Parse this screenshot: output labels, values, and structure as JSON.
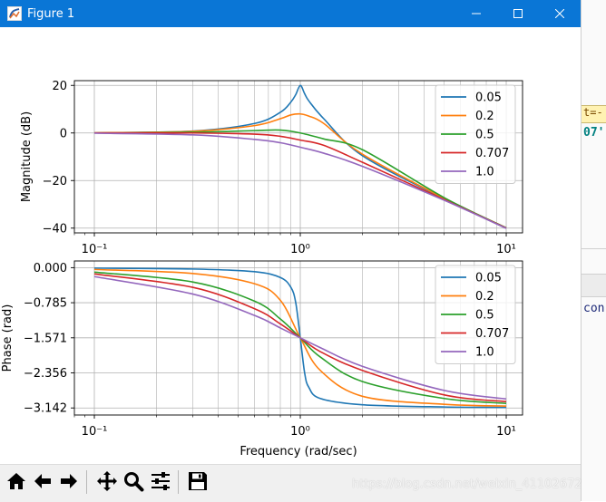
{
  "window": {
    "title": "Figure 1",
    "titlebar_color": "#0a76d6"
  },
  "figure": {
    "chart_data": [
      {
        "type": "line",
        "xscale": "log",
        "xlim": [
          0.08,
          12
        ],
        "ylim": [
          -42,
          22
        ],
        "xlabel": "",
        "ylabel": "Magnitude (dB)",
        "yticks": [
          20,
          0,
          -20,
          -40
        ],
        "ytick_labels": [
          "20",
          "0",
          "−20",
          "−40"
        ],
        "xticks": [
          0.1,
          1,
          10
        ],
        "xtick_labels": [
          "10⁻¹",
          "10⁰",
          "10¹"
        ],
        "grid": true,
        "legend_position": "upper right",
        "legend_entries": [
          "0.05",
          "0.2",
          "0.5",
          "0.707",
          "1.0"
        ],
        "series": [
          {
            "name": "0.05",
            "color": "#1f77b4",
            "x": [
              0.1,
              0.3,
              0.6,
              0.8,
              0.9,
              0.95,
              1.0,
              1.05,
              1.1,
              1.3,
              2,
              5,
              10
            ],
            "y": [
              0.1,
              0.8,
              4.0,
              8.7,
              13.0,
              16.1,
              20.0,
              16.5,
              13.5,
              6.0,
              -9.5,
              -27.6,
              -39.9
            ]
          },
          {
            "name": "0.2",
            "color": "#ff7f0e",
            "x": [
              0.1,
              0.3,
              0.6,
              0.8,
              0.9,
              1.0,
              1.1,
              1.3,
              2,
              5,
              10
            ],
            "y": [
              0.1,
              0.7,
              3.1,
              6.0,
              7.6,
              8.0,
              7.1,
              4.0,
              -8.9,
              -27.5,
              -39.9
            ]
          },
          {
            "name": "0.5",
            "color": "#2ca02c",
            "x": [
              0.1,
              0.3,
              0.6,
              0.8,
              1.0,
              1.3,
              2,
              5,
              10
            ],
            "y": [
              0.0,
              0.3,
              1.0,
              1.2,
              0.0,
              -2.5,
              -7.0,
              -27.2,
              -39.9
            ]
          },
          {
            "name": "0.707",
            "color": "#d62728",
            "x": [
              0.1,
              0.3,
              0.6,
              0.8,
              1.0,
              1.3,
              2,
              5,
              10
            ],
            "y": [
              0.0,
              0.0,
              -0.5,
              -1.4,
              -3.0,
              -5.2,
              -12.3,
              -28.0,
              -40.0
            ]
          },
          {
            "name": "1.0",
            "color": "#9467bd",
            "x": [
              0.1,
              0.3,
              0.6,
              0.8,
              1.0,
              1.3,
              2,
              5,
              10
            ],
            "y": [
              -0.1,
              -0.8,
              -2.7,
              -4.1,
              -6.0,
              -8.5,
              -14.0,
              -28.3,
              -40.1
            ]
          }
        ]
      },
      {
        "type": "line",
        "xscale": "log",
        "xlim": [
          0.08,
          12
        ],
        "ylim": [
          -3.3,
          0.15
        ],
        "xlabel": "Frequency (rad/sec)",
        "ylabel": "Phase (rad)",
        "yticks": [
          0.0,
          -0.785,
          -1.571,
          -2.356,
          -3.142
        ],
        "ytick_labels": [
          "0.000",
          "−0.785",
          "−1.571",
          "−2.356",
          "−3.142"
        ],
        "xticks": [
          0.1,
          1,
          10
        ],
        "xtick_labels": [
          "10⁻¹",
          "10⁰",
          "10¹"
        ],
        "grid": true,
        "legend_position": "upper right",
        "legend_entries": [
          "0.05",
          "0.2",
          "0.5",
          "0.707",
          "1.0"
        ],
        "series": [
          {
            "name": "0.05",
            "color": "#1f77b4",
            "x": [
              0.1,
              0.3,
              0.6,
              0.8,
              0.9,
              0.95,
              1.0,
              1.05,
              1.1,
              1.25,
              2,
              5,
              10
            ],
            "y": [
              -0.01,
              -0.03,
              -0.09,
              -0.22,
              -0.44,
              -0.78,
              -1.571,
              -2.36,
              -2.68,
              -2.93,
              -3.07,
              -3.12,
              -3.13
            ]
          },
          {
            "name": "0.2",
            "color": "#ff7f0e",
            "x": [
              0.1,
              0.3,
              0.6,
              0.8,
              1.0,
              1.25,
              2,
              5,
              10
            ],
            "y": [
              -0.04,
              -0.13,
              -0.36,
              -0.73,
              -1.571,
              -2.3,
              -2.88,
              -3.06,
              -3.1
            ]
          },
          {
            "name": "0.5",
            "color": "#2ca02c",
            "x": [
              0.1,
              0.3,
              0.6,
              0.8,
              1.0,
              1.25,
              2,
              5,
              10
            ],
            "y": [
              -0.1,
              -0.32,
              -0.75,
              -1.15,
              -1.571,
              -2.0,
              -2.55,
              -2.93,
              -3.04
            ]
          },
          {
            "name": "0.707",
            "color": "#d62728",
            "x": [
              0.1,
              0.3,
              0.6,
              0.8,
              1.0,
              1.25,
              2,
              5,
              10
            ],
            "y": [
              -0.14,
              -0.44,
              -0.92,
              -1.26,
              -1.571,
              -1.88,
              -2.3,
              -2.85,
              -3.0
            ]
          },
          {
            "name": "1.0",
            "color": "#9467bd",
            "x": [
              0.1,
              0.3,
              0.6,
              0.8,
              1.0,
              1.25,
              2,
              5,
              10
            ],
            "y": [
              -0.2,
              -0.59,
              -1.07,
              -1.35,
              -1.571,
              -1.79,
              -2.21,
              -2.75,
              -2.94
            ]
          }
        ]
      }
    ]
  },
  "toolbar": {
    "buttons": [
      "home-icon",
      "back-arrow-icon",
      "forward-arrow-icon",
      "pan-icon",
      "zoom-icon",
      "configure-subplots-icon",
      "save-icon"
    ]
  },
  "side_panel": {
    "code_line_1": "t=-",
    "code_line_2": "07'",
    "code_line_3": "con"
  },
  "watermark": "https://blog.csdn.net/weixin_41102672"
}
